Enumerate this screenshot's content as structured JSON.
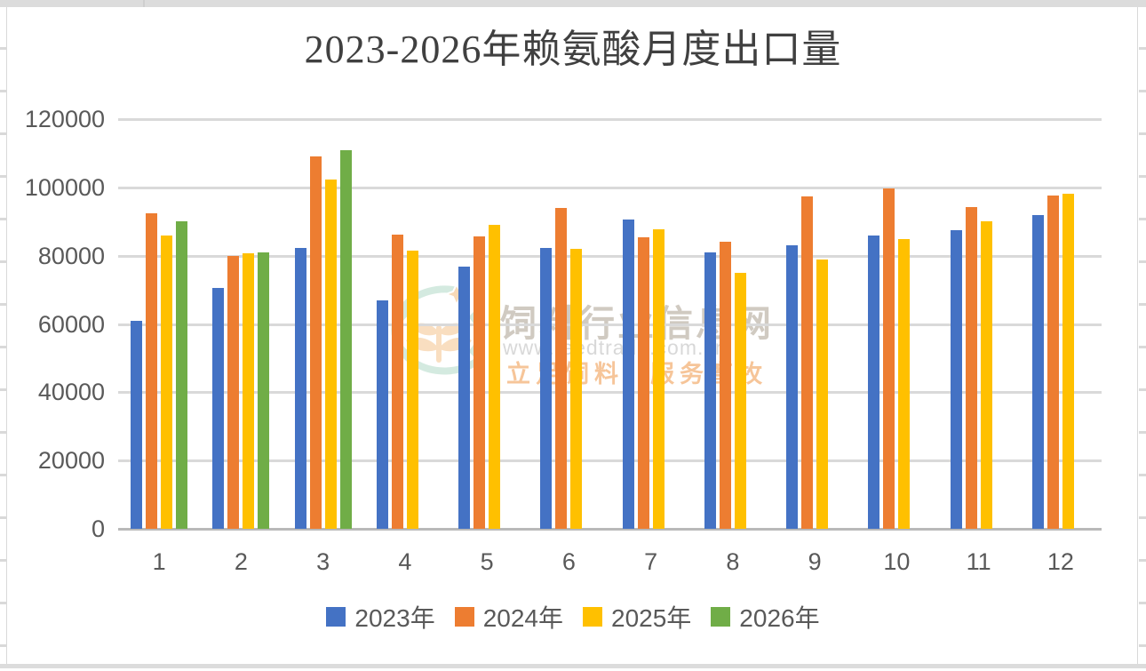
{
  "chart_data": {
    "type": "bar",
    "title": "2023-2026年赖氨酸月度出口量",
    "categories": [
      "1",
      "2",
      "3",
      "4",
      "5",
      "6",
      "7",
      "8",
      "9",
      "10",
      "11",
      "12"
    ],
    "series": [
      {
        "name": "2023年",
        "color": "#4472C4",
        "values": [
          61000,
          70500,
          82300,
          67000,
          76700,
          82200,
          90700,
          81000,
          83000,
          86000,
          87500,
          92000
        ]
      },
      {
        "name": "2024年",
        "color": "#ED7D31",
        "values": [
          92400,
          79800,
          109200,
          86300,
          85600,
          93900,
          85500,
          84200,
          97300,
          99600,
          94200,
          97500
        ]
      },
      {
        "name": "2025年",
        "color": "#FFC000",
        "values": [
          85800,
          80800,
          102200,
          81500,
          89100,
          81900,
          87800,
          74900,
          79000,
          85000,
          90000,
          98100
        ]
      },
      {
        "name": "2026年",
        "color": "#70AD47",
        "values": [
          90000,
          81000,
          110800,
          null,
          null,
          null,
          null,
          null,
          null,
          null,
          null,
          null
        ]
      }
    ],
    "ylim": [
      0,
      120000
    ],
    "ytick_step": 20000,
    "y_ticks": [
      "120000",
      "100000",
      "80000",
      "60000",
      "40000",
      "20000",
      "0"
    ],
    "xlabel": "",
    "ylabel": "",
    "grid": true,
    "legend_position": "bottom"
  },
  "watermark": {
    "site_name": "饲料行业信息网",
    "url": "www.feedtrade.com.cn",
    "slogan_left": "立足饲料",
    "slogan_right": "服务畜牧"
  },
  "style": {
    "bar_blue": "#4472C4",
    "bar_orange": "#ED7D31",
    "bar_yellow": "#FFC000",
    "bar_green": "#70AD47",
    "grid_color": "#D9D9D9",
    "axis_color": "#B9B9B9",
    "label_color": "#595959",
    "title_color": "#404040",
    "background": "#FFFFFF"
  }
}
